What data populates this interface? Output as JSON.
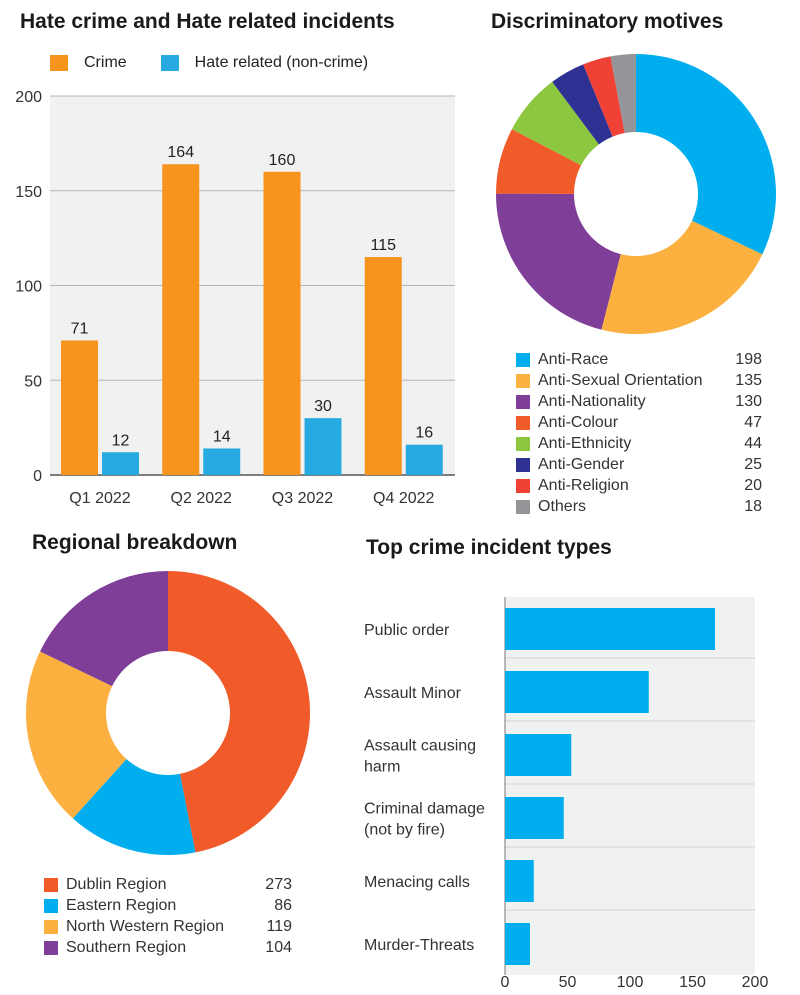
{
  "colors": {
    "crime": "#f7941d",
    "hate_related": "#27aae1",
    "grid": "#b5b5b5",
    "plot_bg": "#f0f1f1",
    "axis_text": "#333333"
  },
  "chart_data": [
    {
      "id": "quarterly",
      "type": "bar",
      "title": "Hate crime and Hate related incidents",
      "categories": [
        "Q1 2022",
        "Q2 2022",
        "Q3 2022",
        "Q4 2022"
      ],
      "series": [
        {
          "name": "Crime",
          "color": "#f7941d",
          "values": [
            71,
            164,
            160,
            115
          ]
        },
        {
          "name": "Hate related (non-crime)",
          "color": "#27aae1",
          "values": [
            12,
            14,
            30,
            16
          ]
        }
      ],
      "ylim": [
        0,
        200
      ],
      "yticks": [
        0,
        50,
        100,
        150,
        200
      ],
      "grid": true,
      "legend": "top-left"
    },
    {
      "id": "motives",
      "type": "pie",
      "title": "Discriminatory motives",
      "donut": true,
      "labels": [
        "Anti-Race",
        "Anti-Sexual Orientation",
        "Anti-Nationality",
        "Anti-Colour",
        "Anti-Ethnicity",
        "Anti-Gender",
        "Anti-Religion",
        "Others"
      ],
      "values": [
        198,
        135,
        130,
        47,
        44,
        25,
        20,
        18
      ],
      "colors": [
        "#00aeef",
        "#fbb040",
        "#7f3f98",
        "#f15a29",
        "#8dc63f",
        "#2e3192",
        "#ef4136",
        "#939598"
      ],
      "legend": "bottom"
    },
    {
      "id": "regions",
      "type": "pie",
      "title": "Regional breakdown",
      "donut": true,
      "labels": [
        "Dublin Region",
        "Eastern Region",
        "North Western Region",
        "Southern Region"
      ],
      "values": [
        273,
        86,
        119,
        104
      ],
      "colors": [
        "#f15a29",
        "#00aeef",
        "#fbb040",
        "#7f3f98"
      ],
      "legend": "bottom"
    },
    {
      "id": "incidents",
      "type": "bar",
      "orientation": "horizontal",
      "title": "Top crime incident types",
      "categories": [
        "Public order",
        "Assault Minor",
        "Assault causing harm",
        "Criminal damage (not by fire)",
        "Menacing calls",
        "Murder-Threats"
      ],
      "category_lines": [
        [
          "Public order"
        ],
        [
          "Assault Minor"
        ],
        [
          "Assault causing",
          "harm"
        ],
        [
          "Criminal damage",
          "(not by fire)"
        ],
        [
          "Menacing calls"
        ],
        [
          "Murder-Threats"
        ]
      ],
      "values": [
        168,
        115,
        53,
        47,
        23,
        20
      ],
      "color": "#00aeef",
      "xlim": [
        0,
        200
      ],
      "xticks": [
        0,
        50,
        100,
        150,
        200
      ],
      "grid": true
    }
  ]
}
